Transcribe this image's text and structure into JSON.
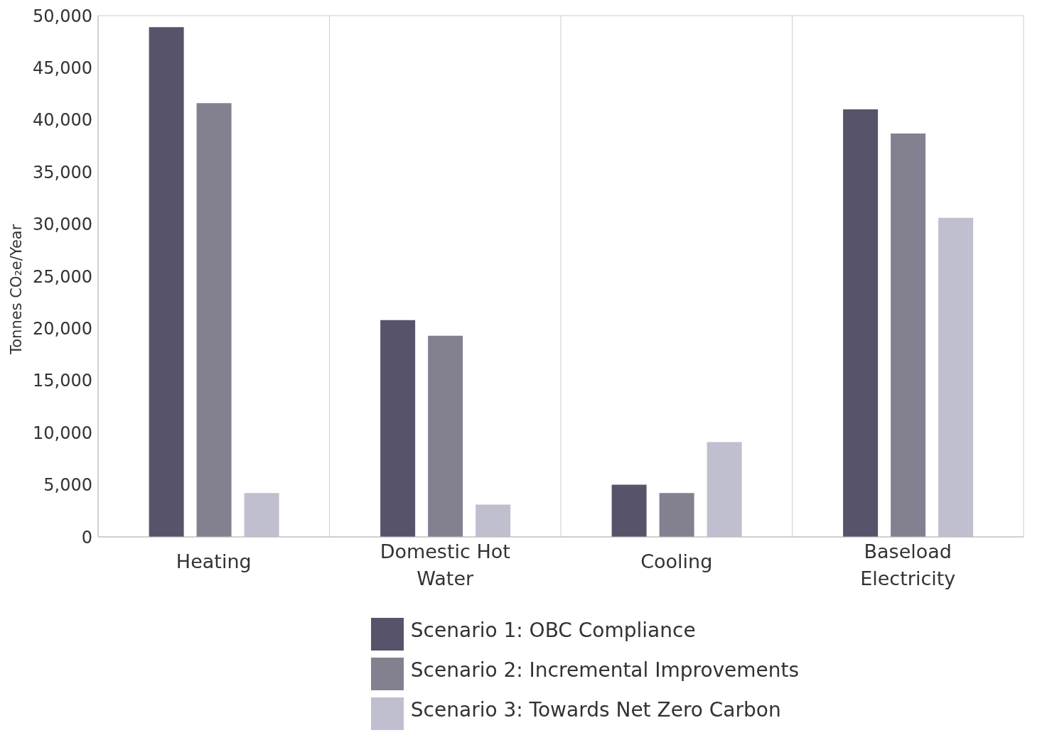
{
  "chart_data": {
    "type": "bar",
    "ylabel": "Tonnes CO₂e/Year",
    "categories": [
      "Heating",
      "Domestic Hot Water",
      "Cooling",
      "Baseload Electricity"
    ],
    "series": [
      {
        "name": "Scenario 1: OBC Compliance",
        "color": "#56536a",
        "values": [
          48900,
          20800,
          5000,
          41000
        ]
      },
      {
        "name": "Scenario 2: Incremental Improvements",
        "color": "#838090",
        "values": [
          41600,
          19300,
          4200,
          38700
        ]
      },
      {
        "name": "Scenario 3: Towards Net Zero Carbon",
        "color": "#c0bfcf",
        "values": [
          4200,
          3100,
          9100,
          30600
        ]
      }
    ],
    "ylim": [
      0,
      50000
    ],
    "yticks": [
      0,
      {
        "value": 5000,
        "label": "5,000"
      },
      {
        "value": 10000,
        "label": "10,000"
      },
      {
        "value": 15000,
        "label": "15,000"
      },
      {
        "value": 20000,
        "label": "20,000"
      },
      {
        "value": 25000,
        "label": "25,000"
      },
      {
        "value": 30000,
        "label": "30,000"
      },
      {
        "value": 35000,
        "label": "35,000"
      },
      {
        "value": 40000,
        "label": "40,000"
      },
      {
        "value": 45000,
        "label": "45,000"
      },
      {
        "value": 50000,
        "label": "50,000"
      }
    ],
    "grid": true,
    "legend": "bottom"
  }
}
